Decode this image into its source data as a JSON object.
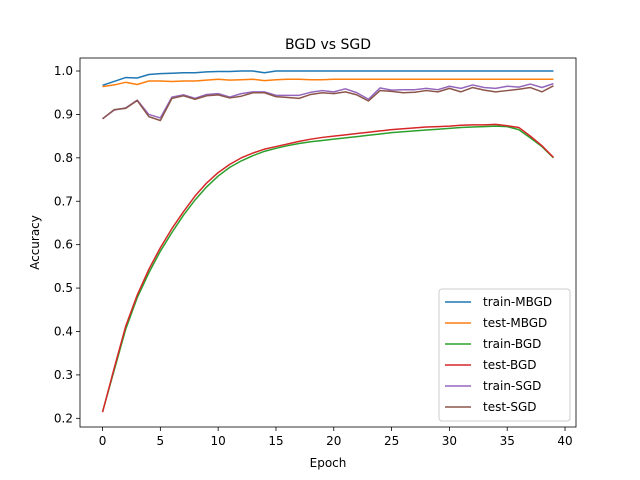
{
  "chart_data": {
    "type": "line",
    "title": "BGD vs SGD",
    "xlabel": "Epoch",
    "ylabel": "Accuracy",
    "xlim": [
      -1.95,
      40.95
    ],
    "ylim": [
      0.18,
      1.03
    ],
    "xticks": [
      0,
      5,
      10,
      15,
      20,
      25,
      30,
      35,
      40
    ],
    "yticks": [
      0.2,
      0.3,
      0.4,
      0.5,
      0.6,
      0.7,
      0.8,
      0.9,
      1.0
    ],
    "xtick_labels": [
      "0",
      "5",
      "10",
      "15",
      "20",
      "25",
      "30",
      "35",
      "40"
    ],
    "ytick_labels": [
      "0.2",
      "0.3",
      "0.4",
      "0.5",
      "0.6",
      "0.7",
      "0.8",
      "0.9",
      "1.0"
    ],
    "grid": false,
    "legend_position": "lower-right",
    "x": [
      0,
      1,
      2,
      3,
      4,
      5,
      6,
      7,
      8,
      9,
      10,
      11,
      12,
      13,
      14,
      15,
      16,
      17,
      18,
      19,
      20,
      21,
      22,
      23,
      24,
      25,
      26,
      27,
      28,
      29,
      30,
      31,
      32,
      33,
      34,
      35,
      36,
      37,
      38,
      39
    ],
    "series": [
      {
        "name": "train-MBGD",
        "color": "#1f77b4",
        "values": [
          0.967,
          0.976,
          0.985,
          0.984,
          0.992,
          0.994,
          0.995,
          0.996,
          0.996,
          0.998,
          0.999,
          0.999,
          1.0,
          1.0,
          0.996,
          1.0,
          1.0,
          1.0,
          1.0,
          1.0,
          1.0,
          1.0,
          1.0,
          1.0,
          1.0,
          1.0,
          1.0,
          1.0,
          1.0,
          1.0,
          1.0,
          1.0,
          1.0,
          1.0,
          1.0,
          1.0,
          1.0,
          1.0,
          1.0,
          1.0
        ]
      },
      {
        "name": "test-MBGD",
        "color": "#ff7f0e",
        "values": [
          0.964,
          0.968,
          0.974,
          0.969,
          0.977,
          0.977,
          0.976,
          0.977,
          0.977,
          0.979,
          0.981,
          0.979,
          0.98,
          0.981,
          0.978,
          0.98,
          0.981,
          0.981,
          0.98,
          0.98,
          0.981,
          0.981,
          0.981,
          0.981,
          0.981,
          0.981,
          0.981,
          0.981,
          0.981,
          0.981,
          0.981,
          0.981,
          0.981,
          0.981,
          0.981,
          0.981,
          0.981,
          0.981,
          0.981,
          0.981
        ]
      },
      {
        "name": "train-BGD",
        "color": "#2ca02c",
        "values": [
          0.215,
          0.31,
          0.405,
          0.478,
          0.535,
          0.585,
          0.628,
          0.668,
          0.703,
          0.733,
          0.758,
          0.778,
          0.793,
          0.805,
          0.815,
          0.822,
          0.828,
          0.833,
          0.837,
          0.84,
          0.843,
          0.846,
          0.849,
          0.852,
          0.855,
          0.858,
          0.86,
          0.862,
          0.864,
          0.866,
          0.868,
          0.87,
          0.871,
          0.872,
          0.873,
          0.872,
          0.865,
          0.846,
          0.826,
          0.8
        ]
      },
      {
        "name": "test-BGD",
        "color": "#d62728",
        "values": [
          0.214,
          0.315,
          0.412,
          0.484,
          0.543,
          0.593,
          0.637,
          0.676,
          0.712,
          0.742,
          0.766,
          0.785,
          0.8,
          0.811,
          0.82,
          0.826,
          0.832,
          0.838,
          0.843,
          0.847,
          0.85,
          0.853,
          0.856,
          0.859,
          0.862,
          0.865,
          0.867,
          0.869,
          0.871,
          0.872,
          0.873,
          0.875,
          0.876,
          0.876,
          0.877,
          0.874,
          0.87,
          0.85,
          0.828,
          0.801
        ]
      },
      {
        "name": "train-SGD",
        "color": "#9467bd",
        "values": [
          0.89,
          0.91,
          0.915,
          0.933,
          0.9,
          0.892,
          0.94,
          0.945,
          0.937,
          0.946,
          0.948,
          0.94,
          0.948,
          0.952,
          0.952,
          0.944,
          0.944,
          0.944,
          0.951,
          0.955,
          0.952,
          0.959,
          0.95,
          0.935,
          0.961,
          0.956,
          0.957,
          0.957,
          0.96,
          0.957,
          0.965,
          0.96,
          0.968,
          0.962,
          0.96,
          0.965,
          0.963,
          0.97,
          0.962,
          0.971
        ]
      },
      {
        "name": "test-SGD",
        "color": "#8c564b",
        "values": [
          0.89,
          0.911,
          0.914,
          0.932,
          0.895,
          0.886,
          0.937,
          0.943,
          0.935,
          0.943,
          0.945,
          0.938,
          0.942,
          0.95,
          0.95,
          0.941,
          0.939,
          0.937,
          0.946,
          0.95,
          0.948,
          0.952,
          0.945,
          0.931,
          0.955,
          0.953,
          0.95,
          0.951,
          0.955,
          0.952,
          0.96,
          0.952,
          0.962,
          0.956,
          0.952,
          0.955,
          0.958,
          0.962,
          0.952,
          0.966
        ]
      }
    ]
  }
}
